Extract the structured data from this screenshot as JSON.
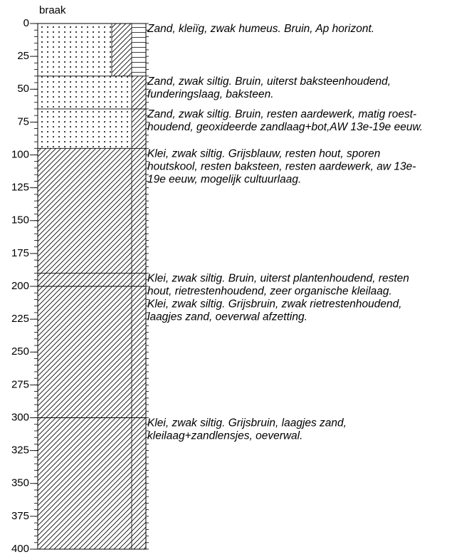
{
  "header": {
    "title": "braak"
  },
  "axis": {
    "ticks": [
      0,
      25,
      50,
      75,
      100,
      125,
      150,
      175,
      200,
      225,
      250,
      275,
      300,
      325,
      350,
      375,
      400
    ]
  },
  "layers": [
    {
      "top": 0,
      "bottom": 40,
      "pattern": "dots-hatch",
      "description": [
        "Zand,  kleiïg, zwak humeus. Bruin, Ap horizont."
      ]
    },
    {
      "top": 40,
      "bottom": 65,
      "pattern": "dots",
      "description": [
        "Zand, zwak siltig. Bruin, uiterst baksteenhoudend,",
        "funderingslaag, baksteen."
      ]
    },
    {
      "top": 65,
      "bottom": 95,
      "pattern": "dots",
      "description": [
        "Zand, zwak siltig. Bruin, resten aardewerk, matig roest-",
        "houdend, geoxideerde zandlaag+bot,AW 13e-19e eeuw."
      ]
    },
    {
      "top": 95,
      "bottom": 190,
      "pattern": "hatch",
      "description": [
        "Klei, zwak siltig. Grijsblauw, resten hout, sporen",
        "houtskool, resten baksteen, resten aardewerk, aw 13e-",
        "19e eeuw, mogelijk cultuurlaag."
      ]
    },
    {
      "top": 190,
      "bottom": 200,
      "pattern": "hatch",
      "description": [
        "Klei, zwak siltig. Bruin, uiterst plantenhoudend, resten",
        "hout, rietrestenhoudend, zeer organische kleilaag."
      ]
    },
    {
      "top": 200,
      "bottom": 300,
      "pattern": "hatch",
      "description": [
        "Klei, zwak siltig. Grijsbruin, zwak rietrestenhoudend,",
        "laagjes zand, oeverwal afzetting."
      ]
    },
    {
      "top": 300,
      "bottom": 400,
      "pattern": "hatch",
      "description": [
        "Klei, zwak siltig. Grijsbruin, laagjes zand,",
        "kleilaag+zandlensjes, oeverwal."
      ]
    }
  ]
}
